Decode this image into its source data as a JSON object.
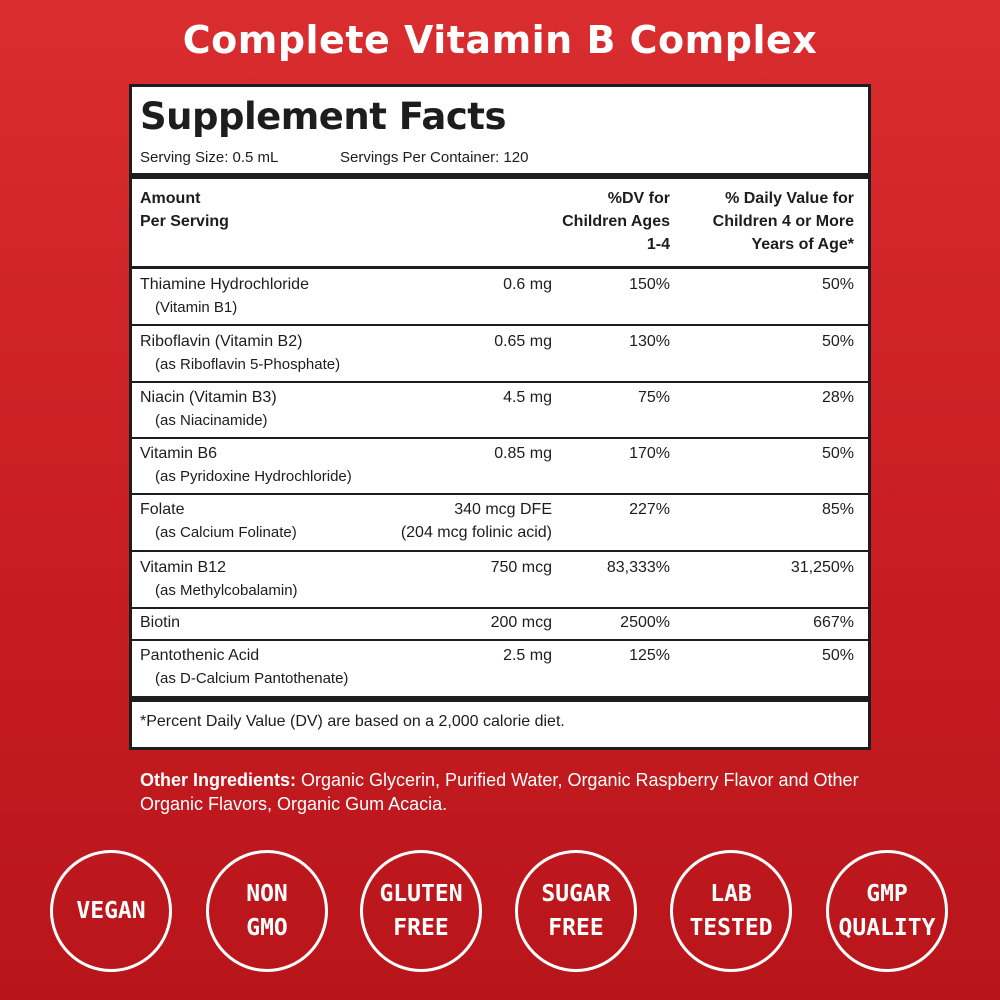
{
  "headline": "Complete Vitamin B Complex",
  "panel": {
    "title": "Supplement Facts",
    "serving_size": "Serving Size: 0.5 mL",
    "servings_per_container": "Servings Per Container: 120",
    "header": {
      "amount_line1": "Amount",
      "amount_line2": "Per Serving",
      "dv1_line1": "%DV for",
      "dv1_line2": "Children Ages",
      "dv1_line3": "1-4",
      "dv2_line1": "% Daily Value for",
      "dv2_line2": "Children 4 or More",
      "dv2_line3": "Years of Age*"
    },
    "rows": [
      {
        "name": "Thiamine Hydrochloride",
        "sub": "(Vitamin B1)",
        "amount": "0.6 mg",
        "amount2": "",
        "dv1": "150%",
        "dv2": "50%"
      },
      {
        "name": "Riboflavin (Vitamin B2)",
        "sub": "(as Riboflavin 5-Phosphate)",
        "amount": "0.65 mg",
        "amount2": "",
        "dv1": "130%",
        "dv2": "50%"
      },
      {
        "name": "Niacin (Vitamin B3)",
        "sub": "(as Niacinamide)",
        "amount": "4.5 mg",
        "amount2": "",
        "dv1": "75%",
        "dv2": "28%"
      },
      {
        "name": "Vitamin B6",
        "sub": "(as Pyridoxine Hydrochloride)",
        "amount": "0.85 mg",
        "amount2": "",
        "dv1": "170%",
        "dv2": "50%"
      },
      {
        "name": "Folate",
        "sub": "(as Calcium Folinate)",
        "amount": "340 mcg DFE",
        "amount2": "(204 mcg folinic acid)",
        "dv1": "227%",
        "dv2": "85%"
      },
      {
        "name": "Vitamin B12",
        "sub": "(as Methylcobalamin)",
        "amount": "750 mcg",
        "amount2": "",
        "dv1": "83,333%",
        "dv2": "31,250%"
      },
      {
        "name": "Biotin",
        "sub": "",
        "amount": "200 mcg",
        "amount2": "",
        "dv1": "2500%",
        "dv2": "667%"
      },
      {
        "name": "Pantothenic Acid",
        "sub": "(as D-Calcium Pantothenate)",
        "amount": "2.5 mg",
        "amount2": "",
        "dv1": "125%",
        "dv2": "50%"
      }
    ],
    "footnote": "*Percent Daily Value (DV) are based on a 2,000 calorie diet."
  },
  "other_ingredients": {
    "label": "Other Ingredients:",
    "text": " Organic Glycerin, Purified Water, Organic Raspberry Flavor and Other Organic Flavors, Organic Gum Acacia."
  },
  "badges": [
    {
      "line1": "VEGAN",
      "line2": ""
    },
    {
      "line1": "NON",
      "line2": "GMO"
    },
    {
      "line1": "GLUTEN",
      "line2": "FREE"
    },
    {
      "line1": "SUGAR",
      "line2": "FREE"
    },
    {
      "line1": "LAB",
      "line2": "TESTED"
    },
    {
      "line1": "GMP",
      "line2": "QUALITY"
    }
  ],
  "colors": {
    "background": "#c81d22",
    "panel_border": "#1d1d1d",
    "text_light": "#ffffff"
  }
}
